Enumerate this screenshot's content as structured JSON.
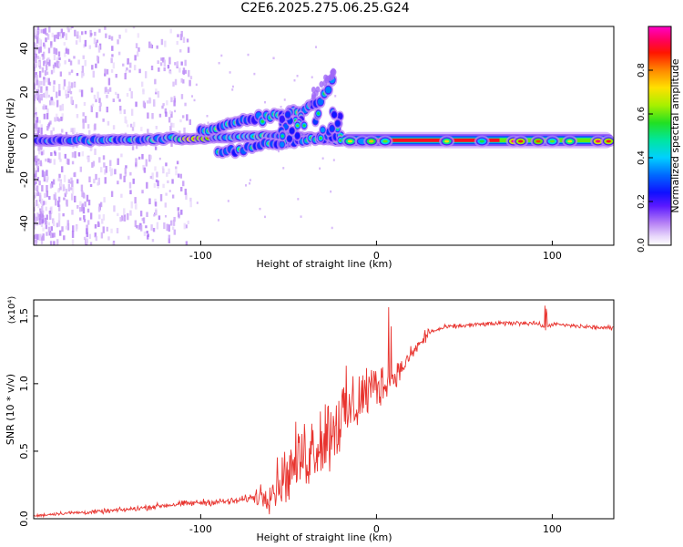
{
  "title": "C2E6.2025.275.06.25.G24",
  "colors": {
    "snr_line": "#e8342f",
    "axis": "#000000",
    "colormap": [
      "#ffffff",
      "#c9a8f0",
      "#8b3dff",
      "#2a00ff",
      "#0058ff",
      "#00c8ff",
      "#00e0a0",
      "#33dd22",
      "#ccee00",
      "#ffcc00",
      "#ff5500",
      "#ff0000",
      "#ff0088",
      "#ff00cc"
    ]
  },
  "chart_data": [
    {
      "type": "heatmap",
      "title": "C2E6.2025.275.06.25.G24",
      "xlabel": "Height of straight line (km)",
      "ylabel": "Frequency (Hz)",
      "xlim": [
        -195,
        135
      ],
      "ylim": [
        -50,
        50
      ],
      "xticks": [
        -100,
        0,
        100
      ],
      "yticks": [
        -40,
        -20,
        0,
        20,
        40
      ],
      "description_series": [
        {
          "name": "main band",
          "x": [
            -195,
            -150,
            -100,
            -50,
            -20,
            0,
            50,
            100,
            135
          ],
          "y": [
            -2,
            -2,
            -1,
            0,
            -2,
            -2,
            -2,
            -3,
            -3
          ]
        },
        {
          "name": "upper branch",
          "x": [
            -100,
            -80,
            -60,
            -40,
            -30,
            -25
          ],
          "y": [
            2,
            6,
            9,
            12,
            18,
            26
          ]
        },
        {
          "name": "lower branch",
          "x": [
            -90,
            -70,
            -50,
            -30,
            -20
          ],
          "y": [
            -8,
            -5,
            -3,
            -1,
            0
          ]
        }
      ],
      "colorbar": {
        "label": "Normalized spectral amplitude",
        "range": [
          0.0,
          1.0
        ],
        "ticks": [
          "0.0",
          "0.2",
          "0.4",
          "0.6",
          "0.8"
        ]
      }
    },
    {
      "type": "line",
      "xlabel": "Height of straight line (km)",
      "ylabel": "SNR (10 * v/v)",
      "multiplier": "(x10⁴)",
      "xlim": [
        -195,
        135
      ],
      "ylim": [
        0,
        1.62
      ],
      "xticks": [
        -100,
        0,
        100
      ],
      "yticks": [
        "0.0",
        "0.5",
        "1.0",
        "1.5"
      ],
      "series": [
        {
          "name": "SNR",
          "x": [
            -195,
            -180,
            -160,
            -140,
            -120,
            -100,
            -80,
            -70,
            -60,
            -55,
            -50,
            -45,
            -40,
            -35,
            -30,
            -25,
            -20,
            -15,
            -10,
            -5,
            0,
            5,
            10,
            15,
            20,
            25,
            30,
            40,
            60,
            80,
            90,
            96,
            100,
            110,
            120,
            135
          ],
          "y": [
            0.02,
            0.04,
            0.05,
            0.07,
            0.1,
            0.12,
            0.13,
            0.16,
            0.2,
            0.28,
            0.35,
            0.42,
            0.48,
            0.55,
            0.6,
            0.68,
            0.75,
            0.8,
            0.88,
            0.95,
            0.98,
            1.0,
            1.05,
            1.12,
            1.22,
            1.3,
            1.38,
            1.42,
            1.44,
            1.45,
            1.45,
            1.42,
            1.44,
            1.43,
            1.42,
            1.41
          ]
        }
      ]
    }
  ]
}
